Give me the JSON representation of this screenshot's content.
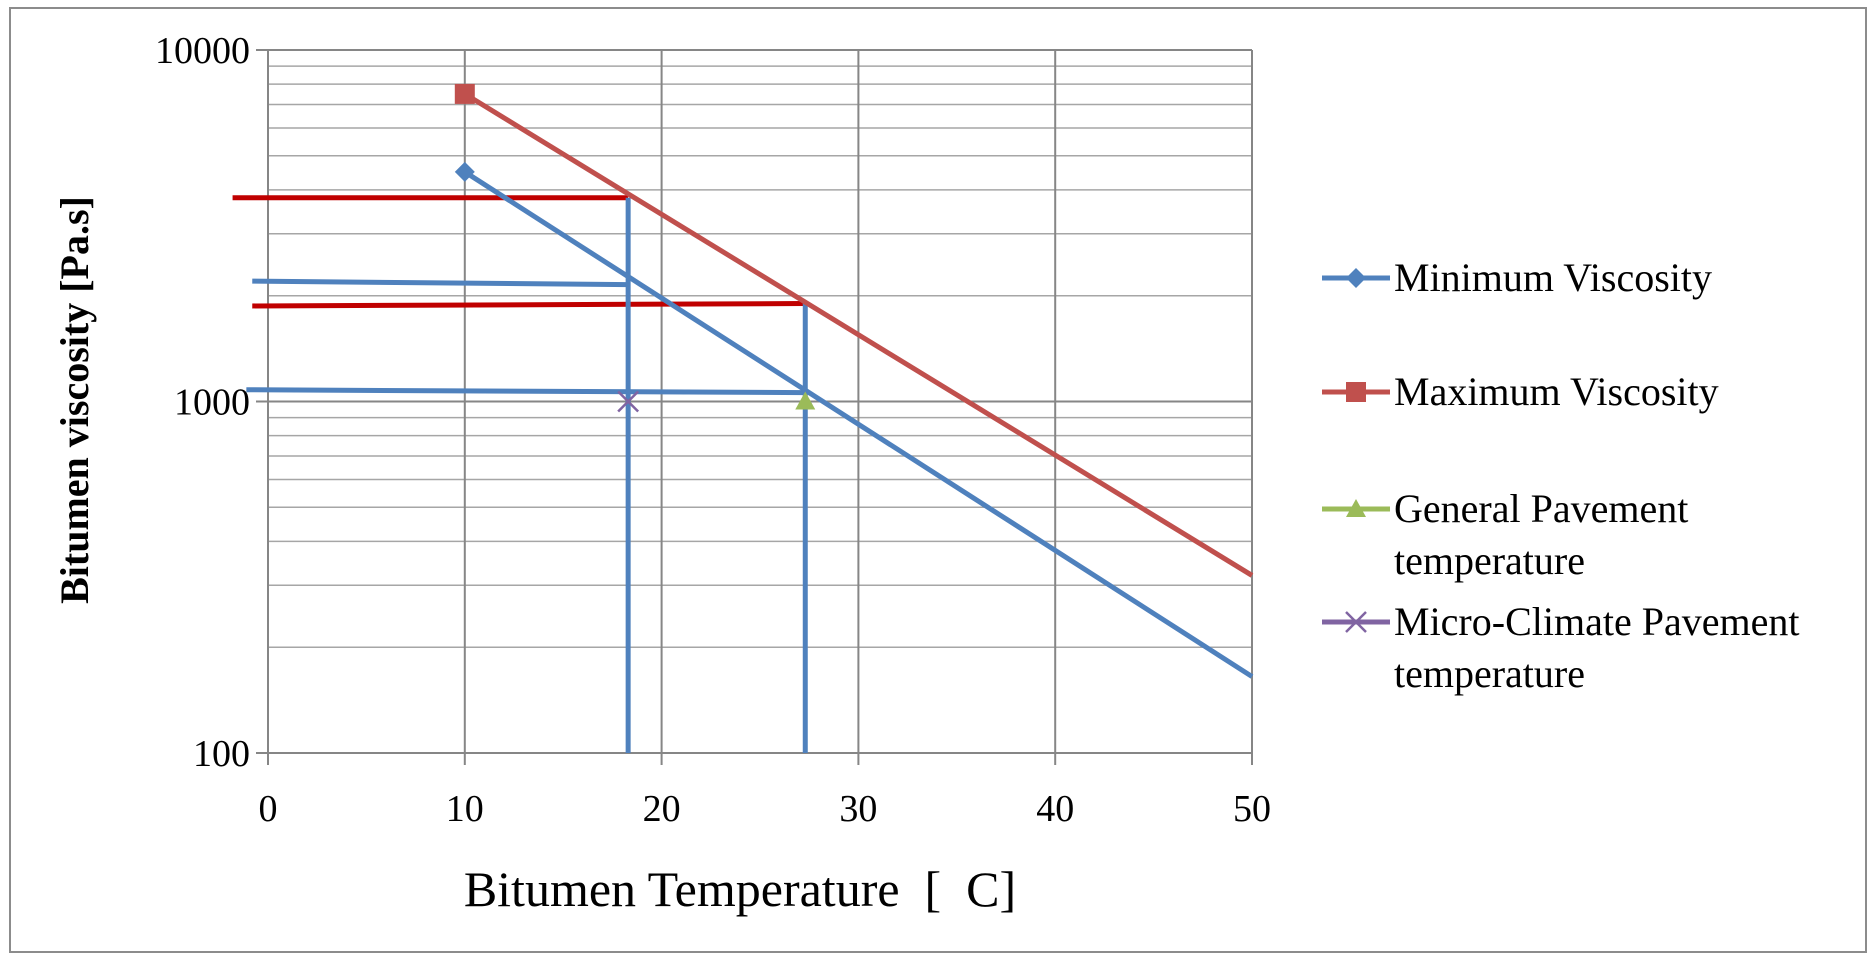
{
  "chart_data": {
    "type": "line",
    "xlabel": "Bitumen Temperature  [  C]",
    "ylabel": "Bitumen viscosity [Pa.s]",
    "xlim": [
      0,
      50
    ],
    "ylim": [
      100,
      10000
    ],
    "y_scale": "log",
    "x_ticks": [
      "0",
      "10",
      "20",
      "30",
      "40",
      "50"
    ],
    "y_ticks": [
      "10000",
      "1000",
      "100"
    ],
    "grid": true,
    "legend_position": "right",
    "series": [
      {
        "name": "Minimum Viscosity",
        "color": "#4f81bd",
        "marker": "diamond",
        "x": [
          10,
          50
        ],
        "y": [
          4500,
          165
        ]
      },
      {
        "name": "Maximum Viscosity",
        "color": "#c0504d",
        "marker": "square",
        "x": [
          10,
          50
        ],
        "y": [
          7500,
          320
        ]
      },
      {
        "name": "General Pavement temperature",
        "color": "#9bbb59",
        "marker": "triangle",
        "x": [
          27.3
        ],
        "y": [
          1000
        ]
      },
      {
        "name": "Micro-Climate Pavement temperature",
        "color": "#8064a2",
        "marker": "x",
        "x": [
          18.3
        ],
        "y": [
          1000
        ]
      }
    ],
    "annotation_lines": [
      {
        "color": "#c00000",
        "x": [
          -1.8,
          18.3
        ],
        "y": [
          3800,
          3800
        ]
      },
      {
        "color": "#c00000",
        "x": [
          -0.8,
          27.3
        ],
        "y": [
          1870,
          1900
        ]
      },
      {
        "color": "#4f81bd",
        "x": [
          -0.8,
          18.3
        ],
        "y": [
          2200,
          2150
        ]
      },
      {
        "color": "#4f81bd",
        "x": [
          -1.1,
          27.3
        ],
        "y": [
          1080,
          1060
        ]
      },
      {
        "color": "#4f81bd",
        "x": [
          18.3,
          18.3
        ],
        "y": [
          3800,
          100
        ]
      },
      {
        "color": "#4f81bd",
        "x": [
          27.3,
          27.3
        ],
        "y": [
          1900,
          100
        ]
      }
    ]
  }
}
